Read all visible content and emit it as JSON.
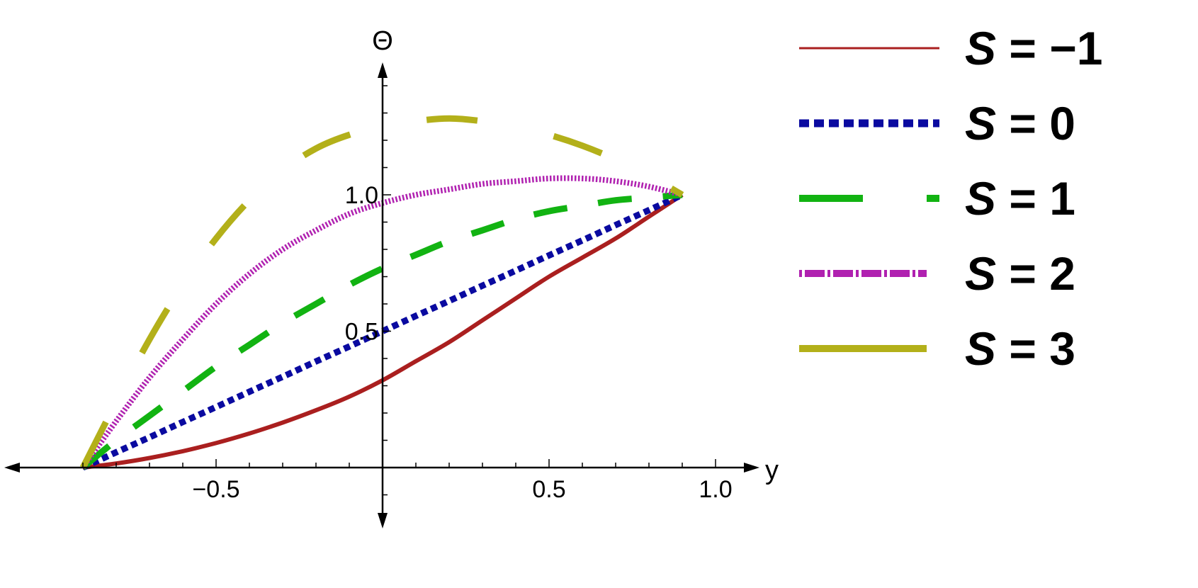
{
  "chart_data": {
    "type": "line",
    "title": "",
    "xlabel": "y",
    "ylabel": "Θ",
    "xlim": [
      -1.0,
      1.0
    ],
    "ylim": [
      -0.2,
      1.45
    ],
    "x_ticks": [
      -0.5,
      0.5,
      1.0
    ],
    "x_tick_labels": [
      "−0.5",
      "0.5",
      "1.0"
    ],
    "y_ticks": [
      0.5,
      1.0
    ],
    "y_tick_labels": [
      "0.5",
      "1.0"
    ],
    "grid": false,
    "legend_position": "right",
    "x": [
      -0.9,
      -0.8,
      -0.7,
      -0.6,
      -0.5,
      -0.4,
      -0.3,
      -0.2,
      -0.1,
      0.0,
      0.1,
      0.2,
      0.3,
      0.4,
      0.5,
      0.6,
      0.7,
      0.8,
      0.9
    ],
    "series": [
      {
        "name": "S = −1",
        "legend_prefix": "S",
        "legend_value": "= −1",
        "color": "#aa1f1f",
        "dash": "solid-thin",
        "values": [
          0.0,
          0.015,
          0.035,
          0.06,
          0.09,
          0.125,
          0.165,
          0.21,
          0.26,
          0.32,
          0.39,
          0.46,
          0.54,
          0.62,
          0.7,
          0.77,
          0.84,
          0.92,
          1.0
        ]
      },
      {
        "name": "S = 0",
        "legend_prefix": "S",
        "legend_value": "= 0",
        "color": "#0a0aa0",
        "dash": "dotted",
        "values": [
          0.0,
          0.056,
          0.111,
          0.167,
          0.222,
          0.278,
          0.333,
          0.389,
          0.444,
          0.5,
          0.556,
          0.611,
          0.667,
          0.722,
          0.778,
          0.833,
          0.889,
          0.944,
          1.0
        ]
      },
      {
        "name": "S = 1",
        "legend_prefix": "S",
        "legend_value": "= 1",
        "color": "#12b312",
        "dash": "dashed",
        "values": [
          0.0,
          0.1,
          0.19,
          0.28,
          0.37,
          0.45,
          0.53,
          0.6,
          0.67,
          0.73,
          0.78,
          0.83,
          0.87,
          0.91,
          0.94,
          0.96,
          0.98,
          0.99,
          1.0
        ]
      },
      {
        "name": "S = 2",
        "legend_prefix": "S",
        "legend_value": "= 2",
        "color": "#b021b0",
        "dash": "dot-dash",
        "values": [
          0.0,
          0.17,
          0.33,
          0.47,
          0.6,
          0.71,
          0.8,
          0.87,
          0.93,
          0.97,
          1.0,
          1.02,
          1.04,
          1.05,
          1.06,
          1.06,
          1.05,
          1.03,
          1.0
        ]
      },
      {
        "name": "S = 3",
        "legend_prefix": "S",
        "legend_value": "= 3",
        "color": "#b3b01a",
        "dash": "long-dash",
        "values": [
          0.0,
          0.24,
          0.47,
          0.67,
          0.84,
          0.98,
          1.09,
          1.17,
          1.22,
          1.25,
          1.27,
          1.28,
          1.27,
          1.25,
          1.22,
          1.18,
          1.13,
          1.07,
          1.0
        ]
      }
    ]
  }
}
